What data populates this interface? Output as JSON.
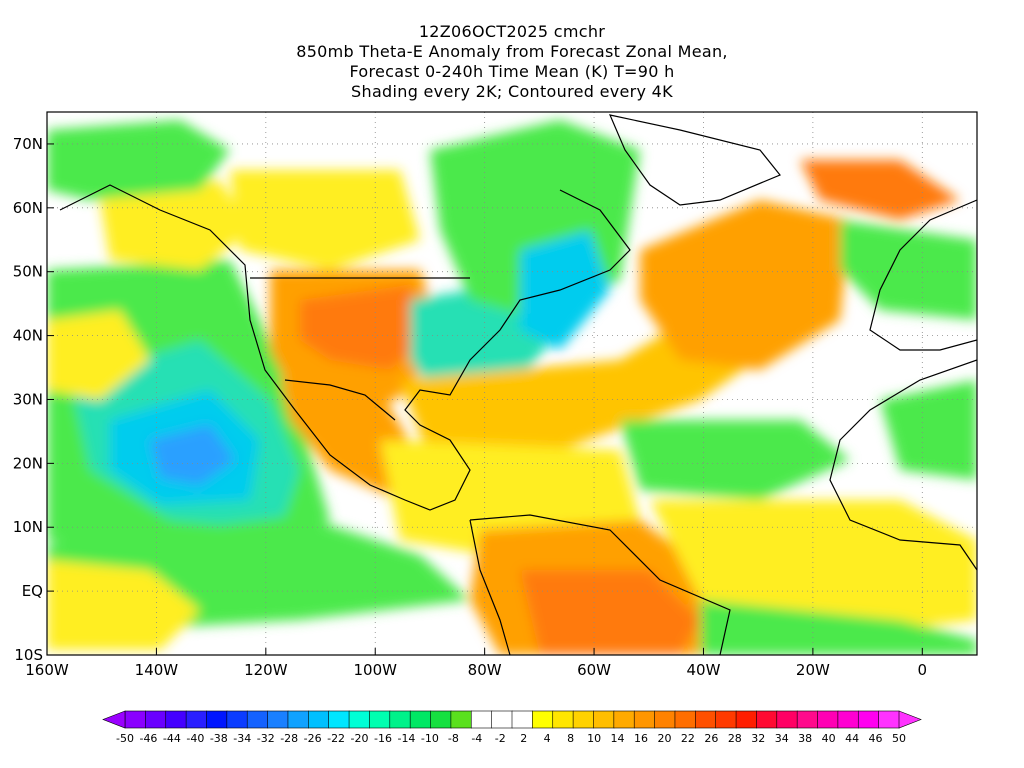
{
  "title_lines": [
    "12Z06OCT2025 cmchr",
    "850mb Theta-E Anomaly from Forecast Zonal Mean,",
    "Forecast 0-240h Time Mean (K) T=90 h",
    "Shading every 2K; Contoured every 4K"
  ],
  "map": {
    "lon_range": [
      -160,
      10
    ],
    "lat_range": [
      -10,
      75
    ],
    "y_ticks": [
      {
        "lat": 70,
        "label": "70N"
      },
      {
        "lat": 60,
        "label": "60N"
      },
      {
        "lat": 50,
        "label": "50N"
      },
      {
        "lat": 40,
        "label": "40N"
      },
      {
        "lat": 30,
        "label": "30N"
      },
      {
        "lat": 20,
        "label": "20N"
      },
      {
        "lat": 10,
        "label": "10N"
      },
      {
        "lat": 0,
        "label": "EQ"
      },
      {
        "lat": -10,
        "label": "10S"
      }
    ],
    "x_ticks": [
      {
        "lon": -160,
        "label": "160W"
      },
      {
        "lon": -140,
        "label": "140W"
      },
      {
        "lon": -120,
        "label": "120W"
      },
      {
        "lon": -100,
        "label": "100W"
      },
      {
        "lon": -80,
        "label": "80W"
      },
      {
        "lon": -60,
        "label": "60W"
      },
      {
        "lon": -40,
        "label": "40W"
      },
      {
        "lon": -20,
        "label": "20W"
      },
      {
        "lon": 0,
        "label": "0"
      }
    ],
    "grid": "dotted"
  },
  "colorbar": {
    "colors": [
      "#8a00ff",
      "#6a00ff",
      "#4400ff",
      "#2a1fff",
      "#0016ff",
      "#0b3cff",
      "#1462ff",
      "#1a80ff",
      "#10a2ff",
      "#00c0ff",
      "#00e6ff",
      "#00ffd6",
      "#00ffb0",
      "#00f28a",
      "#00e864",
      "#16e040",
      "#5ae01e",
      "#ffffff",
      "#ffffff",
      "#ffffff",
      "#ffff00",
      "#ffe600",
      "#ffd200",
      "#ffbe00",
      "#ffaa00",
      "#ff9600",
      "#ff8200",
      "#ff6e00",
      "#ff5000",
      "#ff3a00",
      "#ff1e00",
      "#ff0a32",
      "#ff0064",
      "#ff0a8c",
      "#ff00b4",
      "#ff00d2",
      "#ff00f0",
      "#ff32ff"
    ],
    "labels": [
      "-50",
      "-46",
      "-44",
      "-40",
      "-38",
      "-34",
      "-32",
      "-28",
      "-26",
      "-22",
      "-20",
      "-16",
      "-14",
      "-10",
      "-8",
      "-4",
      "-2",
      "2",
      "4",
      "8",
      "10",
      "14",
      "16",
      "20",
      "22",
      "26",
      "28",
      "32",
      "34",
      "38",
      "40",
      "44",
      "46",
      "50"
    ]
  },
  "palette": {
    "green": "#4ce94c",
    "teal": "#26e0b4",
    "cyan": "#00ccee",
    "blue": "#2aa0ff",
    "yellow": "#ffee22",
    "gold": "#ffc400",
    "orange": "#ffa000",
    "deep_orange": "#ff7a10"
  }
}
